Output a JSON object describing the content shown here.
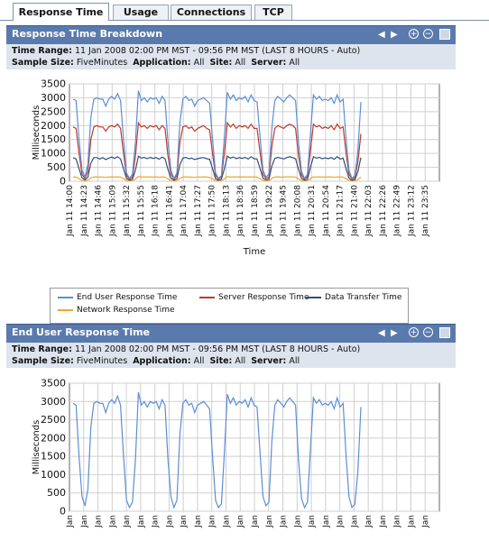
{
  "tabs": [
    {
      "label": "Response Time",
      "active": true
    },
    {
      "label": "Usage",
      "active": false
    },
    {
      "label": "Connections",
      "active": false
    },
    {
      "label": "TCP",
      "active": false
    }
  ],
  "panels": [
    {
      "title": "Response Time Breakdown",
      "time_range_label": "Time Range:",
      "time_range_value": "11 Jan 2008 02:00 PM MST - 09:56 PM MST (LAST 8 HOURS - Auto)",
      "sample_size_label": "Sample Size:",
      "sample_size_value": "FiveMinutes",
      "application_label": "Application:",
      "application_value": "All",
      "site_label": "Site:",
      "site_value": "All",
      "server_label": "Server:",
      "server_value": "All"
    },
    {
      "title": "End User Response Time",
      "time_range_label": "Time Range:",
      "time_range_value": "11 Jan 2008 02:00 PM MST - 09:56 PM MST (LAST 8 HOURS - Auto)",
      "sample_size_label": "Sample Size:",
      "sample_size_value": "FiveMinutes",
      "application_label": "Application:",
      "application_value": "All",
      "site_label": "Site:",
      "site_value": "All",
      "server_label": "Server:",
      "server_value": "All"
    }
  ],
  "legend": {
    "end_user": "End User Response Time",
    "server": "Server Response Time",
    "data_transfer": "Data Transfer Time",
    "network": "Network Response Time"
  },
  "colors": {
    "end_user": "#5b8ed6",
    "server": "#c0392b",
    "data_transfer": "#2c4e7e",
    "network": "#f0a830",
    "header_bg": "#5a7aad",
    "info_bg": "#dde4ee"
  },
  "icons": [
    "prev-arrow-icon",
    "next-arrow-icon",
    "zoom-in-icon",
    "zoom-out-icon",
    "export-icon"
  ],
  "chart_data": [
    {
      "type": "line",
      "ylabel": "Milliseconds",
      "xlabel": "Time",
      "ylim": [
        0,
        3500
      ],
      "yticks": [
        0,
        500,
        1000,
        1500,
        2000,
        2500,
        3000,
        3500
      ],
      "grid": true,
      "legend_position": "bottom",
      "x_ticks": [
        "Jan 11 14:00",
        "Jan 11 14:23",
        "Jan 11 14:46",
        "Jan 11 15:09",
        "Jan 11 15:32",
        "Jan 11 15:55",
        "Jan 11 16:18",
        "Jan 11 16:41",
        "Jan 11 17:04",
        "Jan 11 17:27",
        "Jan 11 17:50",
        "Jan 11 18:13",
        "Jan 11 18:36",
        "Jan 11 18:59",
        "Jan 11 19:22",
        "Jan 11 19:45",
        "Jan 11 20:08",
        "Jan 11 20:31",
        "Jan 11 20:54",
        "Jan 11 21:17",
        "Jan 11 21:40",
        "Jan 11 22:03",
        "Jan 11 22:26",
        "Jan 11 22:49",
        "Jan 11 23:12",
        "Jan 11 23:35"
      ],
      "series": [
        {
          "name": "End User Response Time",
          "color": "#5b8ed6",
          "values": [
            2950,
            2900,
            1500,
            400,
            150,
            600,
            2300,
            2950,
            3000,
            2950,
            2950,
            2700,
            2950,
            3050,
            2950,
            3150,
            2900,
            1500,
            300,
            100,
            250,
            1400,
            3250,
            2900,
            3000,
            2850,
            3000,
            2950,
            3000,
            2800,
            3050,
            2900,
            1400,
            400,
            100,
            300,
            2100,
            2950,
            3050,
            2900,
            2950,
            2700,
            2900,
            2950,
            3000,
            2900,
            2800,
            1500,
            300,
            100,
            200,
            1600,
            3200,
            2950,
            3100,
            2900,
            3000,
            2950,
            3050,
            2850,
            3100,
            2900,
            2850,
            1600,
            400,
            150,
            250,
            1900,
            2900,
            3050,
            2950,
            2850,
            3000,
            3100,
            3000,
            2900,
            1400,
            350,
            100,
            250,
            1700,
            3100,
            2950,
            3050,
            2900,
            2950,
            2900,
            3000,
            2800,
            3100,
            2850,
            2950,
            1500,
            400,
            100,
            200,
            1100,
            2850
          ]
        },
        {
          "name": "Server Response Time",
          "color": "#c0392b",
          "values": [
            1950,
            1900,
            1000,
            250,
            100,
            350,
            1500,
            1950,
            2000,
            1950,
            1950,
            1800,
            1950,
            2000,
            1950,
            2050,
            1900,
            1000,
            200,
            80,
            150,
            900,
            2100,
            1950,
            2000,
            1900,
            2000,
            1950,
            2000,
            1850,
            2000,
            1900,
            900,
            250,
            80,
            200,
            1400,
            1950,
            2000,
            1900,
            1950,
            1800,
            1900,
            1950,
            2000,
            1900,
            1850,
            1000,
            200,
            80,
            150,
            1000,
            2100,
            1950,
            2050,
            1900,
            2000,
            1950,
            2000,
            1900,
            2050,
            1900,
            1900,
            1050,
            250,
            100,
            150,
            1250,
            1900,
            2000,
            1950,
            1900,
            2000,
            2050,
            2000,
            1900,
            900,
            220,
            80,
            160,
            1100,
            2050,
            1950,
            2000,
            1900,
            1950,
            1900,
            2000,
            1850,
            2050,
            1900,
            1950,
            1000,
            250,
            80,
            130,
            700,
            1700
          ]
        },
        {
          "name": "Data Transfer Time",
          "color": "#2c4e7e",
          "values": [
            850,
            800,
            450,
            120,
            50,
            150,
            650,
            850,
            850,
            800,
            850,
            780,
            830,
            870,
            820,
            880,
            800,
            450,
            100,
            40,
            70,
            400,
            900,
            830,
            860,
            810,
            860,
            820,
            850,
            790,
            870,
            810,
            420,
            110,
            40,
            90,
            600,
            830,
            860,
            810,
            830,
            780,
            810,
            840,
            850,
            810,
            790,
            450,
            90,
            40,
            70,
            450,
            900,
            830,
            870,
            810,
            850,
            820,
            860,
            800,
            880,
            810,
            800,
            460,
            110,
            50,
            70,
            550,
            820,
            860,
            830,
            800,
            850,
            880,
            850,
            810,
            420,
            100,
            40,
            70,
            500,
            880,
            830,
            860,
            810,
            840,
            810,
            850,
            790,
            880,
            800,
            830,
            450,
            110,
            40,
            60,
            350,
            850
          ]
        },
        {
          "name": "Network Response Time",
          "color": "#f0a830",
          "values": [
            150,
            150,
            90,
            30,
            10,
            40,
            120,
            150,
            160,
            150,
            150,
            140,
            150,
            160,
            150,
            160,
            150,
            90,
            25,
            10,
            20,
            80,
            170,
            150,
            160,
            150,
            160,
            150,
            160,
            140,
            160,
            150,
            80,
            30,
            10,
            20,
            110,
            150,
            160,
            150,
            150,
            140,
            150,
            150,
            160,
            150,
            140,
            90,
            20,
            10,
            15,
            90,
            170,
            150,
            160,
            150,
            160,
            150,
            160,
            150,
            160,
            150,
            150,
            90,
            30,
            10,
            20,
            100,
            150,
            160,
            150,
            150,
            160,
            160,
            160,
            150,
            80,
            25,
            10,
            15,
            90,
            160,
            150,
            160,
            150,
            150,
            150,
            160,
            140,
            160,
            150,
            150,
            90,
            30,
            10,
            15,
            60,
            150
          ]
        }
      ]
    },
    {
      "type": "line",
      "ylabel": "Milliseconds",
      "ylim": [
        0,
        3500
      ],
      "yticks": [
        0,
        500,
        1000,
        1500,
        2000,
        2500,
        3000,
        3500
      ],
      "grid": true,
      "x_ticks": [
        "Jan",
        "Jan",
        "Jan",
        "Jan",
        "Jan",
        "Jan",
        "Jan",
        "Jan",
        "Jan",
        "Jan",
        "Jan",
        "Jan",
        "Jan",
        "Jan",
        "Jan",
        "Jan",
        "Jan",
        "Jan",
        "Jan",
        "Jan",
        "Jan",
        "Jan",
        "Jan",
        "Jan",
        "Jan",
        "Jan"
      ],
      "series": [
        {
          "name": "End User Response Time",
          "color": "#5b8ed6",
          "values": [
            2950,
            2900,
            1500,
            400,
            150,
            600,
            2300,
            2950,
            3000,
            2950,
            2950,
            2700,
            2950,
            3050,
            2950,
            3150,
            2900,
            1500,
            300,
            100,
            250,
            1400,
            3250,
            2900,
            3000,
            2850,
            3000,
            2950,
            3000,
            2800,
            3050,
            2900,
            1400,
            400,
            100,
            300,
            2100,
            2950,
            3050,
            2900,
            2950,
            2700,
            2900,
            2950,
            3000,
            2900,
            2800,
            1500,
            300,
            100,
            200,
            1600,
            3200,
            2950,
            3100,
            2900,
            3000,
            2950,
            3050,
            2850,
            3100,
            2900,
            2850,
            1600,
            400,
            150,
            250,
            1900,
            2900,
            3050,
            2950,
            2850,
            3000,
            3100,
            3000,
            2900,
            1400,
            350,
            100,
            250,
            1700,
            3100,
            2950,
            3050,
            2900,
            2950,
            2900,
            3000,
            2800,
            3100,
            2850,
            2950,
            1500,
            400,
            100,
            200,
            1100,
            2850
          ]
        }
      ]
    }
  ]
}
